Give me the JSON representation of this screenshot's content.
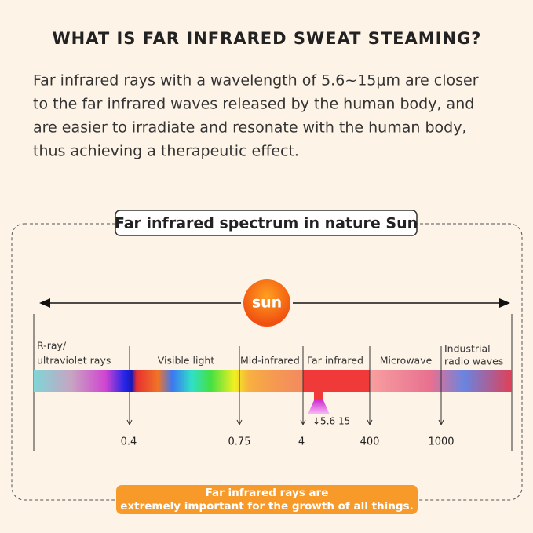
{
  "header": {
    "title": "WHAT IS FAR INFRARED SWEAT STEAMING?"
  },
  "body": {
    "lines": [
      "Far infrared rays with a wavelength of 5.6~15μm are closer",
      "to the far infrared waves released by the human body, and",
      "are easier to irradiate and resonate with the human body,",
      "thus achieving a therapeutic effect."
    ]
  },
  "spectrum": {
    "title": "Far infrared spectrum in nature Sun",
    "sun": "sun",
    "labels": [
      "R-ray/",
      "ultraviolet rays",
      "Visible light",
      "Mid-infrared",
      "Far infrared",
      "Microwave",
      "Industrial",
      "radio waves"
    ],
    "ticks": [
      "0.4",
      "0.75",
      "4",
      "400",
      "1000"
    ],
    "marker": "↓5.6 15"
  },
  "footer": {
    "lines": [
      "Far infrared rays are",
      "extremely important for the growth of all things."
    ]
  }
}
